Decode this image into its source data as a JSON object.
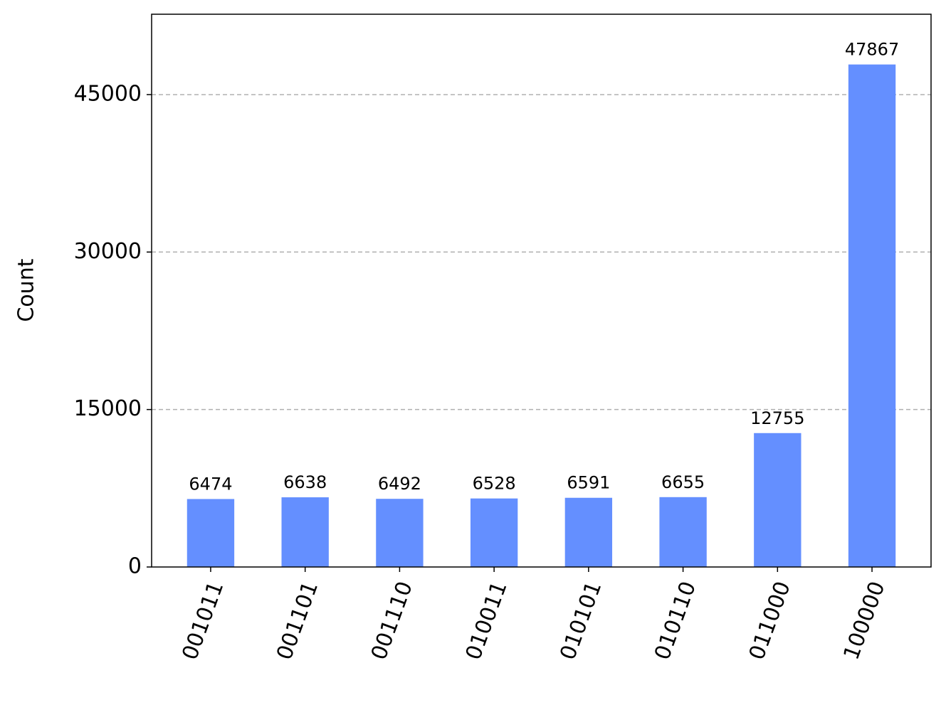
{
  "chart_data": {
    "type": "bar",
    "y_label": "Count",
    "categories": [
      "001011",
      "001101",
      "001110",
      "010011",
      "010101",
      "010110",
      "011000",
      "100000"
    ],
    "values": [
      6474,
      6638,
      6492,
      6528,
      6591,
      6655,
      12755,
      47867
    ],
    "color": "#648fff",
    "ylim": [
      0,
      52654
    ],
    "yticks": [
      0,
      15000,
      30000,
      45000
    ],
    "grid": true
  }
}
